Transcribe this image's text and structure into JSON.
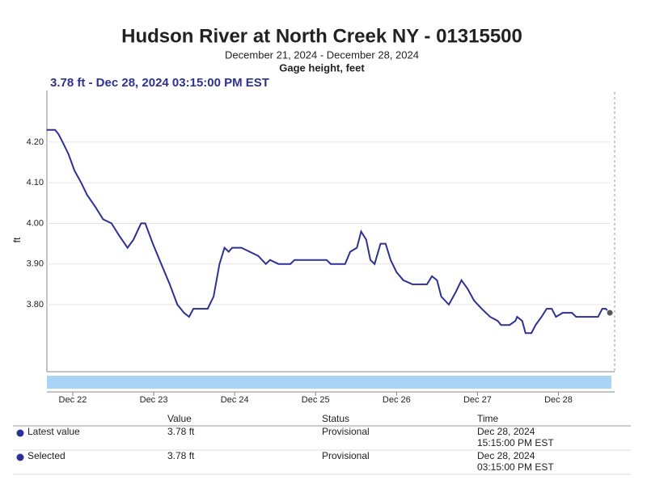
{
  "chart_data": {
    "type": "line",
    "title": "Hudson River at North Creek NY - 01315500",
    "subtitle": "December 21, 2024 - December 28, 2024",
    "y_axis_title": "Gage height, feet",
    "annotation": "3.78 ft - Dec 28, 2024 03:15:00 PM EST",
    "ylabel": "ft",
    "x": [
      "2024-12-21T16:15",
      "2024-12-21T18:45",
      "2024-12-21T19:45",
      "2024-12-21T21:00",
      "2024-12-21T22:45",
      "2024-12-22T00:30",
      "2024-12-22T02:30",
      "2024-12-22T04:15",
      "2024-12-22T06:45",
      "2024-12-22T09:00",
      "2024-12-22T11:30",
      "2024-12-22T13:45",
      "2024-12-22T16:15",
      "2024-12-22T18:00",
      "2024-12-22T20:15",
      "2024-12-22T21:30",
      "2024-12-22T23:45",
      "2024-12-23T02:15",
      "2024-12-23T04:45",
      "2024-12-23T07:00",
      "2024-12-23T09:00",
      "2024-12-23T10:30",
      "2024-12-23T11:45",
      "2024-12-23T16:00",
      "2024-12-23T17:45",
      "2024-12-23T19:30",
      "2024-12-23T21:00",
      "2024-12-23T22:15",
      "2024-12-23T23:15",
      "2024-12-24T02:00",
      "2024-12-24T04:30",
      "2024-12-24T07:00",
      "2024-12-24T09:15",
      "2024-12-24T10:30",
      "2024-12-24T13:00",
      "2024-12-24T16:30",
      "2024-12-24T17:45",
      "2024-12-25T03:15",
      "2024-12-25T04:30",
      "2024-12-25T08:45",
      "2024-12-25T10:15",
      "2024-12-25T12:15",
      "2024-12-25T13:30",
      "2024-12-25T15:00",
      "2024-12-25T16:15",
      "2024-12-25T17:30",
      "2024-12-25T19:15",
      "2024-12-25T20:45",
      "2024-12-25T22:15",
      "2024-12-26T00:00",
      "2024-12-26T02:00",
      "2024-12-26T04:45",
      "2024-12-26T09:00",
      "2024-12-26T10:30",
      "2024-12-26T12:00",
      "2024-12-26T13:15",
      "2024-12-26T15:30",
      "2024-12-26T17:30",
      "2024-12-26T19:15",
      "2024-12-26T21:00",
      "2024-12-26T23:00",
      "2024-12-27T01:15",
      "2024-12-27T03:45",
      "2024-12-27T06:00",
      "2024-12-27T07:00",
      "2024-12-27T09:30",
      "2024-12-27T11:15",
      "2024-12-27T11:45",
      "2024-12-27T13:15",
      "2024-12-27T14:15",
      "2024-12-27T16:00",
      "2024-12-27T17:15",
      "2024-12-27T19:00",
      "2024-12-27T20:30",
      "2024-12-27T22:00",
      "2024-12-27T23:15",
      "2024-12-28T01:15",
      "2024-12-28T04:00",
      "2024-12-28T05:15",
      "2024-12-28T11:45",
      "2024-12-28T13:00",
      "2024-12-28T14:00",
      "2024-12-28T15:15"
    ],
    "series": [
      {
        "name": "Gage height",
        "color": "#2e3192",
        "values": [
          4.23,
          4.23,
          4.22,
          4.2,
          4.17,
          4.13,
          4.1,
          4.07,
          4.04,
          4.01,
          4.0,
          3.97,
          3.94,
          3.96,
          4.0,
          4.0,
          3.95,
          3.9,
          3.85,
          3.8,
          3.78,
          3.77,
          3.79,
          3.79,
          3.82,
          3.9,
          3.94,
          3.93,
          3.94,
          3.94,
          3.93,
          3.92,
          3.9,
          3.91,
          3.9,
          3.9,
          3.91,
          3.91,
          3.9,
          3.9,
          3.93,
          3.94,
          3.98,
          3.96,
          3.91,
          3.9,
          3.95,
          3.95,
          3.91,
          3.88,
          3.86,
          3.85,
          3.85,
          3.87,
          3.86,
          3.82,
          3.8,
          3.83,
          3.86,
          3.84,
          3.81,
          3.79,
          3.77,
          3.76,
          3.75,
          3.75,
          3.76,
          3.77,
          3.76,
          3.73,
          3.73,
          3.75,
          3.77,
          3.79,
          3.79,
          3.77,
          3.78,
          3.78,
          3.77,
          3.77,
          3.79,
          3.79,
          3.78
        ]
      }
    ],
    "xlim": [
      "2024-12-21T16:20",
      "2024-12-28T16:40"
    ],
    "xticks": [
      {
        "value": "2024-12-22T00:00",
        "label": "Dec 22"
      },
      {
        "value": "2024-12-23T00:00",
        "label": "Dec 23"
      },
      {
        "value": "2024-12-24T00:00",
        "label": "Dec 24"
      },
      {
        "value": "2024-12-25T00:00",
        "label": "Dec 25"
      },
      {
        "value": "2024-12-26T00:00",
        "label": "Dec 26"
      },
      {
        "value": "2024-12-27T00:00",
        "label": "Dec 27"
      },
      {
        "value": "2024-12-28T00:00",
        "label": "Dec 28"
      }
    ],
    "ylim": [
      3.635,
      4.327
    ],
    "yticks": [
      {
        "value": 3.8,
        "label": "3.80"
      },
      {
        "value": 3.9,
        "label": "3.90"
      },
      {
        "value": 4.0,
        "label": "4.00"
      },
      {
        "value": 4.1,
        "label": "4.10"
      },
      {
        "value": 4.2,
        "label": "4.20"
      }
    ],
    "grid": true
  },
  "table": {
    "headers": [
      "Value",
      "Status",
      "Time"
    ],
    "rows": [
      {
        "label": "Latest value",
        "value": "3.78 ft",
        "status": "Provisional",
        "time": [
          "Dec 28, 2024",
          "15:15:00 PM EST"
        ]
      },
      {
        "label": "Selected",
        "value": "3.78 ft",
        "status": "Provisional",
        "time": [
          "Dec 28, 2024",
          "03:15:00 PM EST"
        ]
      }
    ]
  }
}
